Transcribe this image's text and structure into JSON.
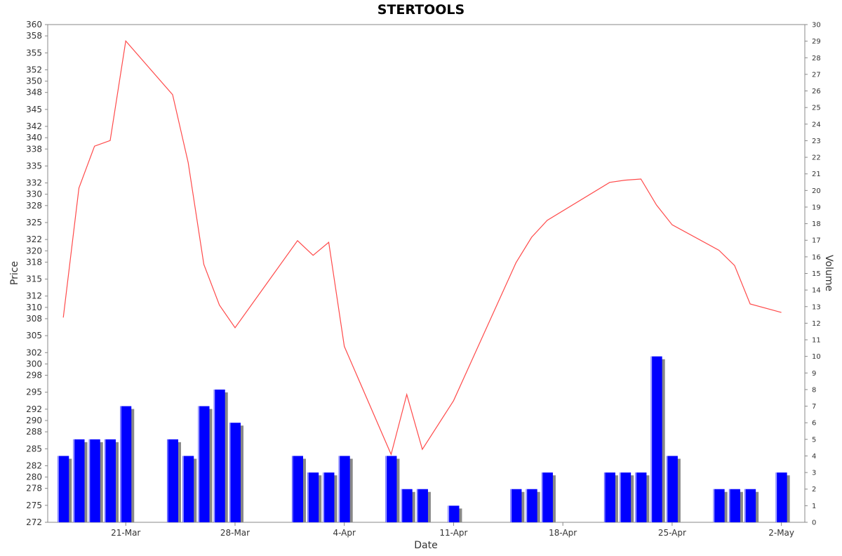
{
  "chart_data": {
    "type": "line",
    "title": "STERTOOLS",
    "xlabel": "Date",
    "ylabel": "Price",
    "y2label": "Volume",
    "x_ticks": [
      {
        "label": "21-Mar",
        "value": 4
      },
      {
        "label": "28-Mar",
        "value": 11
      },
      {
        "label": "4-Apr",
        "value": 18
      },
      {
        "label": "11-Apr",
        "value": 25
      },
      {
        "label": "18-Apr",
        "value": 32
      },
      {
        "label": "25-Apr",
        "value": 39
      },
      {
        "label": "2-May",
        "value": 46
      }
    ],
    "xlim": [
      -1,
      47.5
    ],
    "ylim": [
      272,
      360
    ],
    "y_ticks": [
      "272",
      "275",
      "278",
      "280",
      "282",
      "285",
      "288",
      "290",
      "292",
      "295",
      "298",
      "300",
      "302",
      "305",
      "308",
      "310",
      "312",
      "315",
      "318",
      "320",
      "322",
      "325",
      "328",
      "330",
      "332",
      "335",
      "338",
      "340",
      "342",
      "345",
      "348",
      "350",
      "352",
      "355",
      "358",
      "360"
    ],
    "y2lim": [
      0,
      30
    ],
    "y2_ticks": [
      "0",
      "1",
      "2",
      "3",
      "4",
      "5",
      "6",
      "7",
      "8",
      "9",
      "10",
      "11",
      "12",
      "13",
      "14",
      "15",
      "16",
      "17",
      "18",
      "19",
      "20",
      "21",
      "22",
      "23",
      "24",
      "25",
      "26",
      "27",
      "28",
      "29",
      "30"
    ],
    "grid": false,
    "series": [
      {
        "type": "line",
        "color": "#ff4a4a",
        "x": [
          0,
          1,
          2,
          3,
          4,
          7,
          8,
          9,
          10,
          11,
          15,
          16,
          17,
          18,
          21,
          22,
          23,
          25,
          29,
          30,
          31,
          35,
          36,
          37,
          38,
          39,
          42,
          43,
          44,
          46
        ],
        "y": [
          308.2,
          331.1,
          338.5,
          339.5,
          357.1,
          347.6,
          335.6,
          317.6,
          310.4,
          306.4,
          321.8,
          319.2,
          321.5,
          303.1,
          284.0,
          294.6,
          284.9,
          293.5,
          317.9,
          322.4,
          325.4,
          332.1,
          332.5,
          332.7,
          328.1,
          324.6,
          320.1,
          317.4,
          310.6,
          309.1
        ]
      },
      {
        "type": "bar",
        "color": "#0000ff",
        "shadow_color": "#888888",
        "x": [
          0,
          1,
          2,
          3,
          4,
          7,
          8,
          9,
          10,
          11,
          15,
          16,
          17,
          18,
          21,
          22,
          23,
          25,
          29,
          30,
          31,
          35,
          36,
          37,
          38,
          39,
          42,
          43,
          44,
          46
        ],
        "values": [
          4,
          5,
          5,
          5,
          7,
          5,
          4,
          7,
          8,
          6,
          4,
          3,
          3,
          4,
          4,
          2,
          2,
          1,
          2,
          2,
          3,
          3,
          3,
          3,
          10,
          4,
          2,
          2,
          2,
          3
        ]
      }
    ]
  }
}
